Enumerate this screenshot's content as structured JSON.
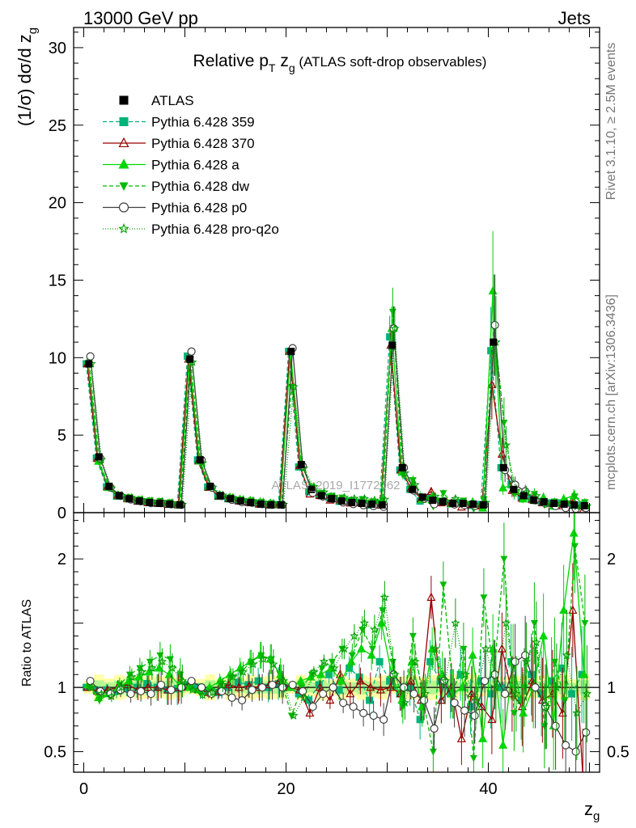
{
  "header": {
    "left": "13000 GeV pp",
    "right": "Jets"
  },
  "side_labels": {
    "rivet": "Rivet 3.1.10, ≥ 2.5M events",
    "mcplots": "mcplots.cern.ch [arXiv:1306.3436]"
  },
  "watermark": "ATLAS_2019_I1772062",
  "chart_data": {
    "type": "line",
    "title": {
      "main": "Relative p",
      "sub_T": "T",
      "mid": " z",
      "sub_g": "g",
      "paren": " (ATLAS soft-drop observables)"
    },
    "ylabel": {
      "prefix": "(1/σ) dσ/d z",
      "sub": "g"
    },
    "ratio_ylabel": "Ratio to ATLAS",
    "xlabel": {
      "main": "z",
      "sub": "g"
    },
    "xlim": [
      -1,
      51
    ],
    "ylim": [
      0,
      31.3
    ],
    "ratio_ylim": [
      0.34,
      2.36
    ],
    "xticks": [
      "0",
      "20",
      "40"
    ],
    "yticks": [
      "0",
      "5",
      "10",
      "15",
      "20",
      "25",
      "30"
    ],
    "ratio_yticks": [
      "0.5",
      "1",
      "2"
    ],
    "legend_position": "top-left",
    "data_series": {
      "name": "ATLAS",
      "color": "#000000",
      "values": [
        9.6,
        3.6,
        1.7,
        1.1,
        0.9,
        0.75,
        0.65,
        0.6,
        0.55,
        0.5,
        9.9,
        3.4,
        1.7,
        1.1,
        0.9,
        0.75,
        0.65,
        0.55,
        0.5,
        0.5,
        10.4,
        3.1,
        1.5,
        1.1,
        0.9,
        0.75,
        0.65,
        0.6,
        0.55,
        0.5,
        10.8,
        2.9,
        1.5,
        1.0,
        0.8,
        0.7,
        0.6,
        0.6,
        0.55,
        0.5,
        11.0,
        2.9,
        1.5,
        1.1,
        0.8,
        0.7,
        0.6,
        0.55,
        0.5,
        0.45
      ]
    },
    "series": [
      {
        "name": "Pythia 6.428 359",
        "color": "#00b379",
        "marker": "square",
        "dash": "5,3",
        "ratio": [
          1.0,
          0.98,
          0.98,
          0.97,
          1.0,
          1.0,
          1.03,
          1.0,
          0.98,
          0.99,
          1.02,
          1.0,
          0.97,
          0.96,
          1.0,
          1.04,
          1.02,
          1.05,
          1.0,
          1.03,
          1.0,
          0.95,
          0.9,
          1.02,
          1.1,
          0.98,
          1.15,
          1.08,
          0.9,
          1.2,
          1.05,
          0.95,
          1.0,
          0.75,
          1.2,
          1.05,
          0.95,
          1.1,
          0.85,
          1.05,
          0.95,
          1.0,
          1.2,
          0.9,
          1.1,
          0.95,
          1.05,
          1.15,
          0.95,
          1.1
        ]
      },
      {
        "name": "Pythia 6.428 370",
        "color": "#990000",
        "marker": "triangle-open",
        "dash": "",
        "ratio": [
          1.0,
          0.97,
          0.98,
          1.0,
          1.02,
          0.98,
          1.0,
          1.0,
          0.98,
          1.0,
          1.0,
          0.98,
          0.96,
          0.97,
          1.02,
          1.0,
          1.01,
          1.0,
          1.02,
          1.05,
          1.0,
          0.98,
          0.8,
          1.0,
          0.9,
          1.1,
          0.95,
          1.05,
          1.0,
          0.98,
          1.0,
          0.95,
          1.05,
          0.9,
          1.7,
          0.9,
          1.0,
          0.6,
          0.95,
          0.85,
          0.75,
          1.3,
          0.95,
          0.85,
          1.05,
          0.9,
          0.95,
          0.8,
          1.6,
          0.3
        ]
      },
      {
        "name": "Pythia 6.428 a",
        "color": "#00d600",
        "marker": "triangle",
        "dash": "",
        "ratio": [
          1.02,
          0.92,
          0.95,
          1.0,
          1.05,
          1.08,
          1.12,
          1.15,
          1.1,
          1.02,
          1.0,
          0.98,
          1.0,
          1.05,
          1.1,
          1.15,
          1.2,
          1.25,
          1.22,
          1.1,
          1.0,
          1.05,
          1.08,
          1.1,
          1.15,
          1.05,
          1.2,
          1.3,
          1.25,
          1.5,
          1.1,
          0.9,
          1.2,
          0.85,
          1.3,
          1.1,
          0.95,
          1.0,
          1.25,
          0.6,
          1.3,
          0.55,
          1.2,
          0.8,
          1.0,
          1.4,
          0.7,
          1.6,
          2.2,
          1.1
        ]
      },
      {
        "name": "Pythia 6.428 dw",
        "color": "#00bb00",
        "marker": "triangle-down",
        "dash": "5,3",
        "ratio": [
          1.0,
          0.9,
          0.95,
          1.02,
          1.1,
          1.15,
          1.2,
          1.25,
          1.22,
          1.1,
          1.0,
          0.95,
          0.97,
          1.03,
          1.08,
          1.12,
          1.2,
          1.25,
          1.22,
          1.05,
          0.78,
          1.0,
          1.1,
          1.15,
          1.2,
          1.3,
          1.25,
          1.45,
          1.3,
          1.6,
          1.2,
          0.85,
          1.4,
          0.9,
          0.5,
          1.8,
          0.95,
          1.3,
          0.45,
          1.7,
          1.1,
          2.0,
          0.8,
          1.0,
          1.5,
          0.7,
          1.2,
          0.9,
          2.1,
          1.5
        ]
      },
      {
        "name": "Pythia 6.428 p0",
        "color": "#404040",
        "marker": "circle-open",
        "dash": "",
        "ratio": [
          1.05,
          0.97,
          0.95,
          0.98,
          0.95,
          0.97,
          0.95,
          1.02,
          0.98,
          1.0,
          1.05,
          1.0,
          0.95,
          0.97,
          0.92,
          0.9,
          0.98,
          1.0,
          1.02,
          1.0,
          1.02,
          0.97,
          0.85,
          0.95,
          1.0,
          0.88,
          0.85,
          0.8,
          0.78,
          0.75,
          1.1,
          1.0,
          0.95,
          0.9,
          0.68,
          1.05,
          0.88,
          0.82,
          0.78,
          1.05,
          1.1,
          0.95,
          1.2,
          1.25,
          1.0,
          0.85,
          0.7,
          0.55,
          0.5,
          0.65
        ]
      },
      {
        "name": "Pythia 6.428 pro-q2o",
        "color": "#00a000",
        "marker": "star-open",
        "dash": "1,2",
        "ratio": [
          1.0,
          0.95,
          0.93,
          1.0,
          1.08,
          1.12,
          1.15,
          1.2,
          1.15,
          1.05,
          0.98,
          0.94,
          0.96,
          1.02,
          1.08,
          1.12,
          1.18,
          1.22,
          1.18,
          1.05,
          0.78,
          0.92,
          1.12,
          1.2,
          1.15,
          1.3,
          1.4,
          1.5,
          1.45,
          1.7,
          1.1,
          0.88,
          1.2,
          0.95,
          1.3,
          1.05,
          1.5,
          1.1,
          0.9,
          1.3,
          1.0,
          1.5,
          0.95,
          1.2,
          1.35,
          0.85,
          1.0,
          1.25,
          0.8,
          0.95
        ]
      }
    ]
  }
}
